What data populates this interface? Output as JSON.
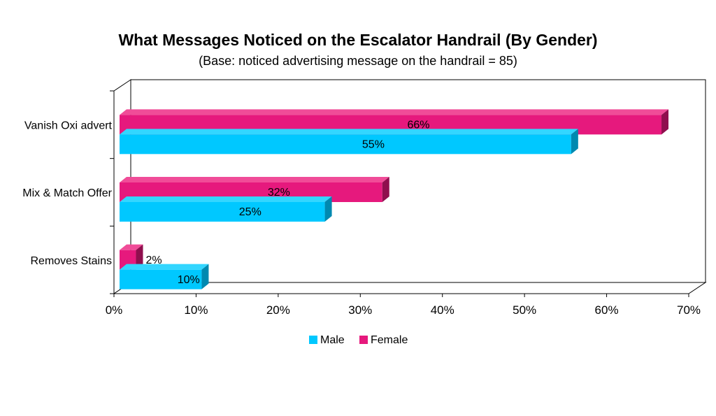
{
  "chart_data": {
    "type": "bar",
    "orientation": "horizontal",
    "title": "What Messages Noticed on the Escalator Handrail (By Gender)",
    "subtitle": "(Base: noticed advertising message on the handrail = 85)",
    "categories": [
      "Vanish Oxi advert",
      "Mix & Match Offer",
      "Removes Stains"
    ],
    "series": [
      {
        "name": "Male",
        "values": [
          55,
          25,
          10
        ],
        "labels": [
          "55%",
          "25%",
          "10%"
        ],
        "color": "#00C8FF",
        "side_color": "#0089B0",
        "top_color": "#33D6FF"
      },
      {
        "name": "Female",
        "values": [
          66,
          32,
          2
        ],
        "labels": [
          "66%",
          "32%",
          "2%"
        ],
        "color": "#E6197D",
        "side_color": "#8F0F4E",
        "top_color": "#F04C98"
      }
    ],
    "x_ticks": [
      0,
      10,
      20,
      30,
      40,
      50,
      60,
      70
    ],
    "x_tick_labels": [
      "0%",
      "10%",
      "20%",
      "30%",
      "40%",
      "50%",
      "60%",
      "70%"
    ],
    "xlim": [
      0,
      70
    ],
    "legend_position": "bottom",
    "grid": false,
    "style": "3d"
  }
}
